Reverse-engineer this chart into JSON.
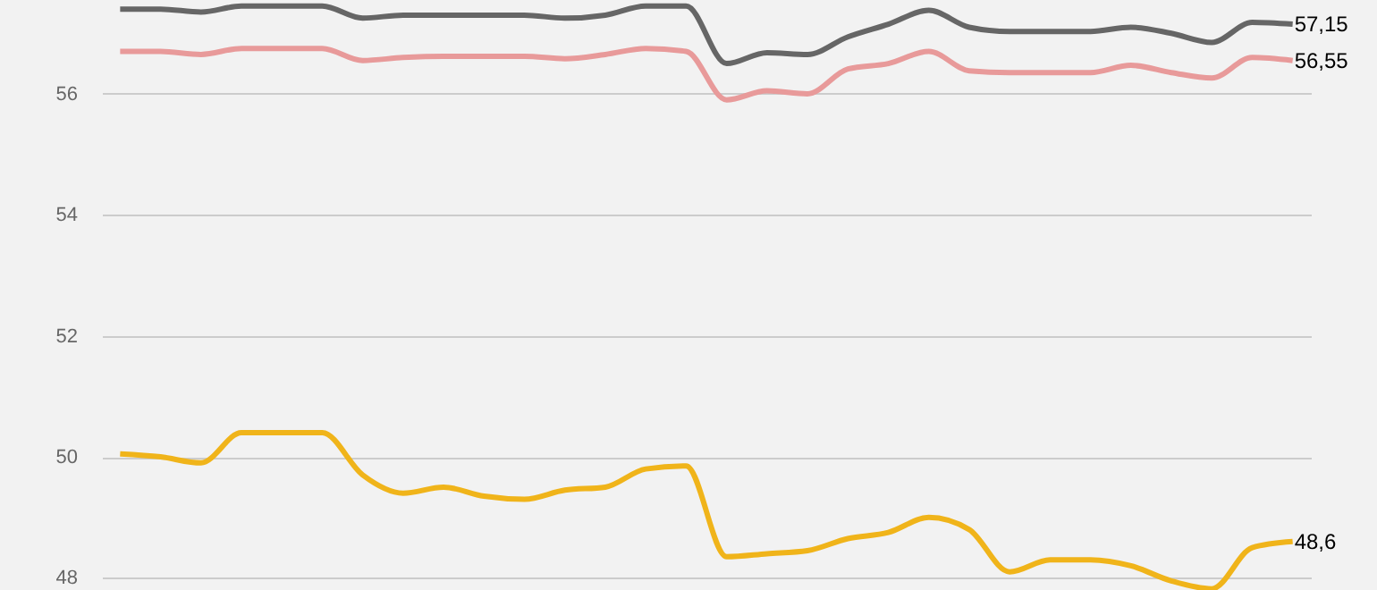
{
  "chart_data": {
    "type": "line",
    "categories": [
      null,
      null,
      null,
      null,
      null,
      null,
      null,
      null,
      null,
      null,
      null,
      null,
      null,
      null,
      null,
      null,
      null,
      null,
      null,
      null,
      null,
      null,
      null,
      null,
      null,
      null,
      null,
      null,
      null,
      null
    ],
    "series": [
      {
        "color": "#666666",
        "values": [
          57.4,
          57.4,
          57.35,
          57.45,
          57.45,
          57.45,
          57.25,
          57.3,
          57.3,
          57.3,
          57.3,
          57.25,
          57.3,
          57.45,
          57.45,
          56.5,
          56.68,
          56.65,
          56.94,
          57.15,
          57.38,
          57.1,
          57.03,
          57.03,
          57.03,
          57.1,
          57.0,
          56.85,
          57.18,
          57.15
        ],
        "value_labels": [
          null,
          null,
          null,
          null,
          null,
          null,
          null,
          null,
          null,
          null,
          null,
          null,
          null,
          null,
          null,
          null,
          null,
          null,
          null,
          null,
          null,
          null,
          null,
          null,
          null,
          null,
          null,
          null,
          null,
          "57,15"
        ]
      },
      {
        "color": "#e89a9a",
        "values": [
          56.7,
          56.7,
          56.65,
          56.75,
          56.75,
          56.75,
          56.55,
          56.6,
          56.62,
          56.62,
          56.62,
          56.58,
          56.65,
          56.75,
          56.7,
          55.9,
          56.05,
          56.0,
          56.41,
          56.5,
          56.7,
          56.38,
          56.35,
          56.35,
          56.35,
          56.47,
          56.35,
          56.26,
          56.6,
          56.55
        ],
        "value_labels": [
          null,
          null,
          null,
          null,
          null,
          null,
          null,
          null,
          null,
          null,
          null,
          null,
          null,
          null,
          null,
          null,
          null,
          null,
          null,
          null,
          null,
          null,
          null,
          null,
          null,
          null,
          null,
          null,
          null,
          "56,55"
        ]
      },
      {
        "color": "#f0b41a",
        "values": [
          50.05,
          50.0,
          49.9,
          50.4,
          50.4,
          50.4,
          49.7,
          49.4,
          49.5,
          49.35,
          49.3,
          49.45,
          49.5,
          49.8,
          49.85,
          48.35,
          48.4,
          48.45,
          48.65,
          48.75,
          49.0,
          48.8,
          48.1,
          48.3,
          48.3,
          48.2,
          47.95,
          47.82,
          48.5,
          48.6
        ],
        "value_labels": [
          null,
          null,
          null,
          null,
          null,
          null,
          null,
          null,
          null,
          null,
          null,
          null,
          null,
          null,
          null,
          null,
          null,
          null,
          null,
          null,
          null,
          null,
          null,
          null,
          null,
          null,
          null,
          null,
          null,
          "48,6"
        ]
      }
    ],
    "ylim": [
      47.8,
      57.55
    ],
    "yticks": [
      48,
      50,
      52,
      54,
      56
    ],
    "grid": "y",
    "tick_labels": "y",
    "line_style": "solid",
    "marker": "none"
  }
}
